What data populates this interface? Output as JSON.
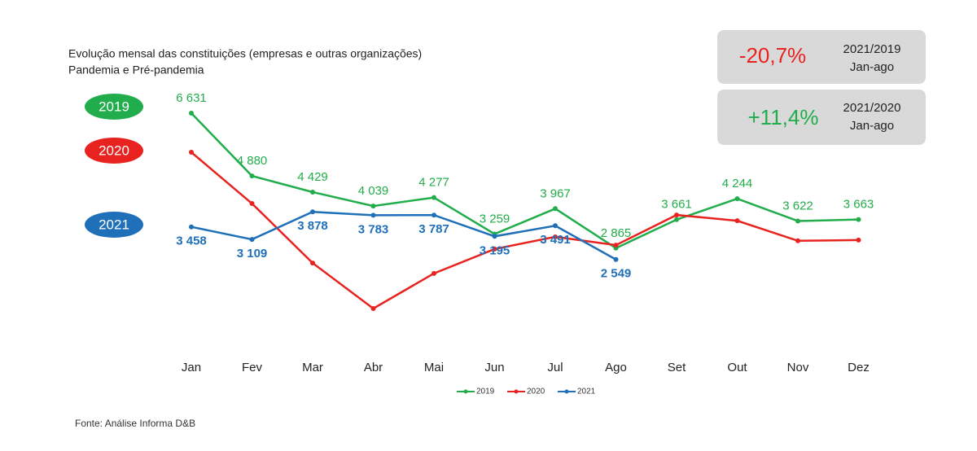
{
  "chart_data": {
    "type": "line",
    "title": "Evolução mensal das constituições (empresas e outras organizações)",
    "subtitle": "Pandemia e Pré-pandemia",
    "categories": [
      "Jan",
      "Fev",
      "Mar",
      "Abr",
      "Mai",
      "Jun",
      "Jul",
      "Ago",
      "Set",
      "Out",
      "Nov",
      "Dez"
    ],
    "series": [
      {
        "name": "2019",
        "color": "#21ad4b",
        "values": [
          6631,
          4880,
          4429,
          4039,
          4277,
          3259,
          3967,
          2865,
          3661,
          4244,
          3622,
          3663
        ],
        "value_labels": [
          "6 631",
          "4 880",
          "4 429",
          "4 039",
          "4 277",
          "3 259",
          "3 967",
          "2 865",
          "3 661",
          "4 244",
          "3 622",
          "3 663"
        ]
      },
      {
        "name": "2020",
        "color": "#e8231f",
        "values": [
          5540,
          4110,
          2450,
          1180,
          2160,
          2840,
          3180,
          2950,
          3790,
          3630,
          3070,
          3090
        ]
      },
      {
        "name": "2021",
        "color": "#1f6fb9",
        "values": [
          3458,
          3109,
          3878,
          3783,
          3787,
          3195,
          3491,
          2549,
          null,
          null,
          null,
          null
        ],
        "value_labels": [
          "3 458",
          "3 109",
          "3 878",
          "3 783",
          "3 787",
          "3 195",
          "3 491",
          "2 549",
          null,
          null,
          null,
          null
        ]
      }
    ],
    "annotations": [
      {
        "label": "-20,7%",
        "period": "2021/2019",
        "range": "Jan-ago"
      },
      {
        "label": "+11,4%",
        "period": "2021/2020",
        "range": "Jan-ago"
      }
    ],
    "source": "Fonte: Análise Informa  D&B"
  }
}
